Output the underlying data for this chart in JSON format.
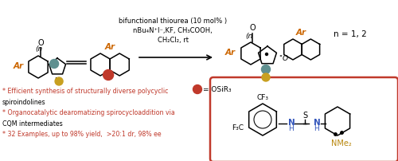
{
  "bg_color": "#ffffff",
  "reaction_conditions_1": "bifunctional thiourea (10 mol% )",
  "reaction_conditions_2": "nBu₄N⁺I⁻,KF, CH₃COOH,",
  "reaction_conditions_3": "CH₂Cl₂, rt",
  "osiR3_label": "= OSiR₃",
  "n_label": "n = 1, 2",
  "box_color": "#c0392b",
  "dot_red": "#c0392b",
  "dot_teal": "#5f9090",
  "dot_gold": "#c8a020",
  "Ar_color": "#cc6600",
  "CF3_top": "CF₃",
  "F3C_left": "F₃C",
  "NMe2_label": "NMe₂",
  "thiourea_blue": "#3355bb",
  "thiourea_gold": "#b8860b",
  "bullet1": "* Efficient synthesis of structurally diverse polycyclic",
  "bullet1b": "spiroindolines",
  "bullet2": "* Organocatalytic dearomatizing spirocycloaddition via",
  "bullet2b": "CQM intermediates",
  "bullet3": "* 32 Examples, up to 98% yield,  >20:1 dr, 98% ee"
}
